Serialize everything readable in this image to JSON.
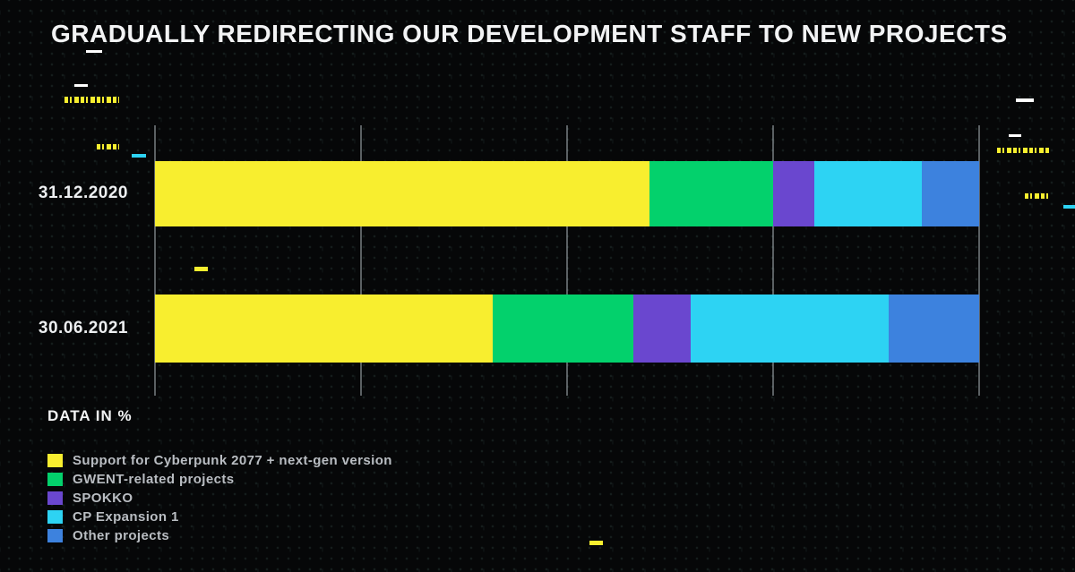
{
  "chart_data": {
    "type": "bar",
    "orientation": "horizontal",
    "stacked": true,
    "units": "percent",
    "title": "GRADUALLY REDIRECTING OUR DEVELOPMENT STAFF TO NEW PROJECTS",
    "note": "DATA IN %",
    "categories": [
      "31.12.2020",
      "30.06.2021"
    ],
    "series": [
      {
        "name": "Support for Cyberpunk 2077 + next-gen version",
        "color": "#F8EE2F",
        "values": [
          60,
          41
        ]
      },
      {
        "name": "GWENT-related projects",
        "color": "#03D16C",
        "values": [
          15,
          17
        ]
      },
      {
        "name": "SPOKKO",
        "color": "#6A47CF",
        "values": [
          5,
          7
        ]
      },
      {
        "name": "CP Expansion 1",
        "color": "#2DD3F3",
        "values": [
          13,
          24
        ]
      },
      {
        "name": "Other projects",
        "color": "#3D82DE",
        "values": [
          7,
          11
        ]
      }
    ],
    "xlim": [
      0,
      100
    ],
    "gridlines_pct": [
      0,
      25,
      50,
      75,
      100
    ],
    "grid": true,
    "legend_position": "bottom-left"
  },
  "colors": {
    "background": "#060708",
    "title_text": "#F2F3F4",
    "category_text": "#EDEFF1",
    "legend_text": "#B9BDC2",
    "gridline": "#A3A9AF",
    "accent_yellow": "#F8EE2F",
    "accent_cyan": "#2DD3F3",
    "accent_white": "#FFFFFF"
  }
}
